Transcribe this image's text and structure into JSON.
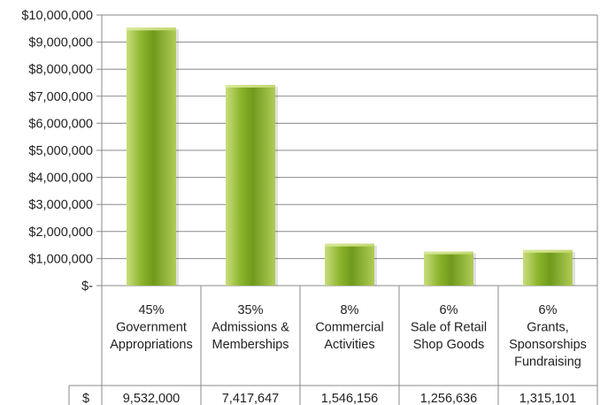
{
  "chart_data": {
    "type": "bar",
    "categories": [
      [
        "45%",
        "Government",
        "Appropriations"
      ],
      [
        "35%",
        "Admissions &",
        "Memberships"
      ],
      [
        "8%",
        "Commercial",
        "Activities"
      ],
      [
        "6%",
        "Sale of Retail",
        "Shop Goods"
      ],
      [
        "6%",
        "Grants,",
        "Sponsorships",
        "Fundraising"
      ]
    ],
    "values": [
      9532000,
      7417647,
      1546156,
      1256636,
      1315101
    ],
    "value_labels": [
      "9,532,000",
      "7,417,647",
      "1,546,156",
      "1,256,636",
      "1,315,101"
    ],
    "table_row_label": "$",
    "ylim": [
      0,
      10000000
    ],
    "yticks": [
      {
        "value": 0,
        "label": "$-"
      },
      {
        "value": 1000000,
        "label": "$1,000,000"
      },
      {
        "value": 2000000,
        "label": "$2,000,000"
      },
      {
        "value": 3000000,
        "label": "$3,000,000"
      },
      {
        "value": 4000000,
        "label": "$4,000,000"
      },
      {
        "value": 5000000,
        "label": "$5,000,000"
      },
      {
        "value": 6000000,
        "label": "$6,000,000"
      },
      {
        "value": 7000000,
        "label": "$7,000,000"
      },
      {
        "value": 8000000,
        "label": "$8,000,000"
      },
      {
        "value": 9000000,
        "label": "$9,000,000"
      },
      {
        "value": 10000000,
        "label": "$10,000,000"
      }
    ],
    "grid": true,
    "colors": {
      "bar_light": "#c8dc78",
      "bar_mid": "#8fb52c",
      "bar_dark": "#5e8a14",
      "grid": "#8a8a8a"
    }
  }
}
